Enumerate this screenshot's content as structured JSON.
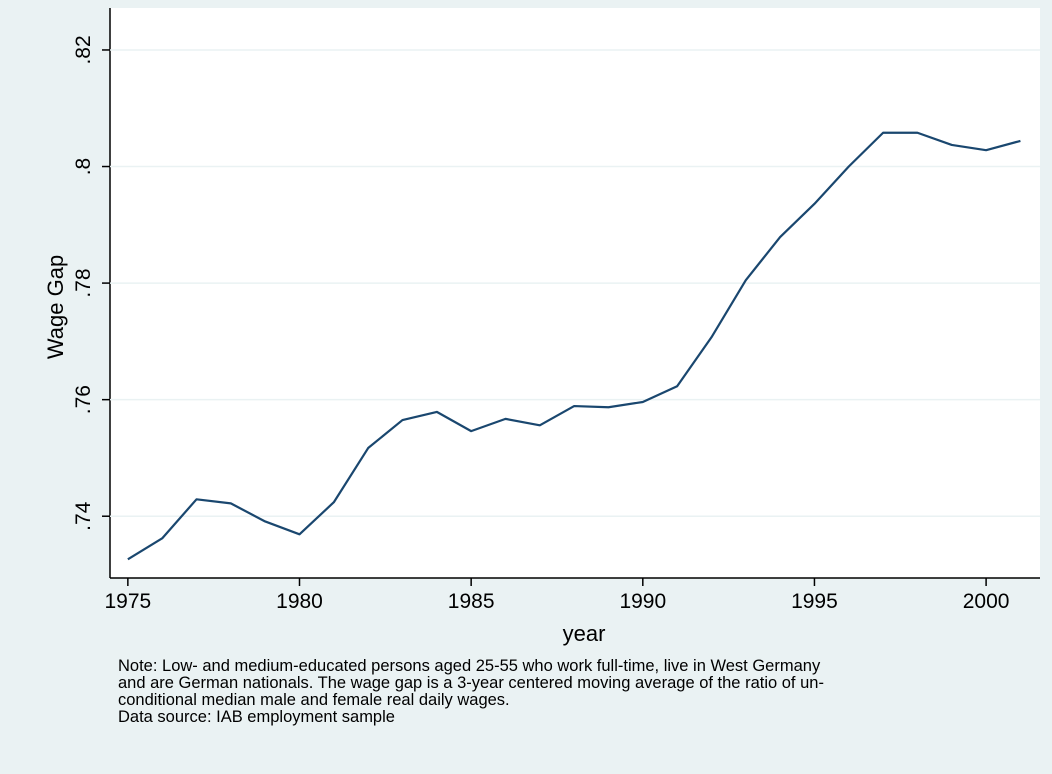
{
  "chart_data": {
    "type": "line",
    "x_label": "year",
    "y_label": "Wage Gap",
    "x": [
      1975,
      1976,
      1977,
      1978,
      1979,
      1980,
      1981,
      1982,
      1983,
      1984,
      1985,
      1986,
      1987,
      1988,
      1989,
      1990,
      1991,
      1992,
      1993,
      1994,
      1995,
      1996,
      1997,
      1998,
      1999,
      2000,
      2001
    ],
    "values": [
      0.7326,
      0.7362,
      0.7429,
      0.7422,
      0.7391,
      0.7369,
      0.7424,
      0.7517,
      0.7565,
      0.7579,
      0.7546,
      0.7567,
      0.7556,
      0.7589,
      0.7587,
      0.7596,
      0.7623,
      0.7707,
      0.7805,
      0.7879,
      0.7936,
      0.8,
      0.8058,
      0.8058,
      0.8037,
      0.8028,
      0.8044
    ],
    "color": "#1a476f",
    "xlim": [
      1974.48,
      2001.57
    ],
    "xticks": [
      1975,
      1980,
      1985,
      1990,
      1995,
      2000
    ],
    "ylim": [
      0.7294,
      0.8272
    ],
    "yticks": [
      {
        "value": 0.74,
        "label": ".74"
      },
      {
        "value": 0.76,
        "label": ".76"
      },
      {
        "value": 0.78,
        "label": ".78"
      },
      {
        "value": 0.8,
        "label": ".8"
      },
      {
        "value": 0.82,
        "label": ".82"
      }
    ],
    "grid": true,
    "note": [
      "Note: Low- and medium-educated persons aged 25-55 who work full-time, live in West Germany",
      "and are German nationals. The wage gap is a 3-year centered moving average of the ratio of un-",
      "conditional median male and female real daily wages.",
      "Data source: IAB employment sample"
    ]
  }
}
